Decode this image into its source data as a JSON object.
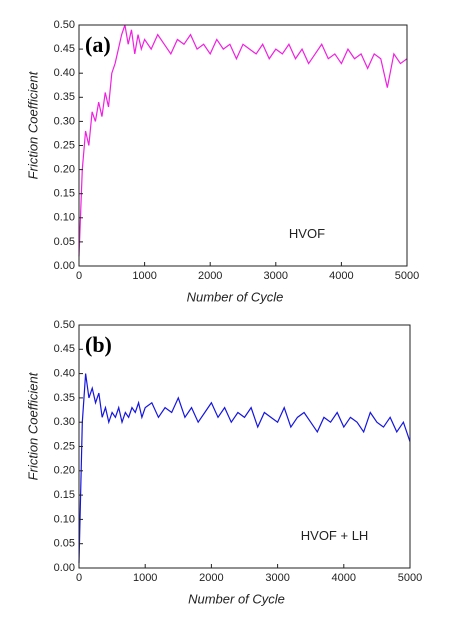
{
  "chart_data": [
    {
      "type": "line",
      "annotation": "(a)",
      "xlabel": "Number of Cycle",
      "ylabel": "Friction Coefficient",
      "xlim": [
        0,
        5000
      ],
      "xticks": [
        0,
        1000,
        2000,
        3000,
        4000,
        5000
      ],
      "ylim": [
        0,
        0.5
      ],
      "yticks": [
        {
          "value": 0,
          "label": "0.00"
        },
        {
          "value": 0.05,
          "label": "0.05"
        },
        {
          "value": 0.1,
          "label": "0.10"
        },
        {
          "value": 0.15,
          "label": "0.15"
        },
        {
          "value": 0.2,
          "label": "0.20"
        },
        {
          "value": 0.25,
          "label": "0.25"
        },
        {
          "value": 0.3,
          "label": "0.30"
        },
        {
          "value": 0.35,
          "label": "0.35"
        },
        {
          "value": 0.4,
          "label": "0.40"
        },
        {
          "value": 0.45,
          "label": "0.45"
        },
        {
          "value": 0.5,
          "label": "0.50"
        }
      ],
      "x": [
        0,
        50,
        100,
        150,
        200,
        250,
        300,
        350,
        400,
        450,
        500,
        550,
        600,
        650,
        700,
        750,
        800,
        850,
        900,
        950,
        1000,
        1100,
        1200,
        1300,
        1400,
        1500,
        1600,
        1700,
        1800,
        1900,
        2000,
        2100,
        2200,
        2300,
        2400,
        2500,
        2600,
        2700,
        2800,
        2900,
        3000,
        3100,
        3200,
        3300,
        3400,
        3500,
        3600,
        3700,
        3800,
        3900,
        4000,
        4100,
        4200,
        4300,
        4400,
        4500,
        4600,
        4700,
        4800,
        4900,
        5000
      ],
      "series": [
        {
          "name": "HVOF",
          "color": "#f020e0",
          "values": [
            0.02,
            0.2,
            0.28,
            0.25,
            0.32,
            0.3,
            0.34,
            0.31,
            0.36,
            0.33,
            0.4,
            0.42,
            0.45,
            0.48,
            0.5,
            0.46,
            0.49,
            0.44,
            0.48,
            0.45,
            0.47,
            0.45,
            0.48,
            0.46,
            0.44,
            0.47,
            0.46,
            0.48,
            0.45,
            0.46,
            0.44,
            0.47,
            0.45,
            0.46,
            0.43,
            0.46,
            0.45,
            0.44,
            0.46,
            0.43,
            0.45,
            0.44,
            0.46,
            0.43,
            0.45,
            0.42,
            0.44,
            0.46,
            0.43,
            0.44,
            0.42,
            0.45,
            0.43,
            0.44,
            0.41,
            0.44,
            0.43,
            0.37,
            0.44,
            0.42,
            0.43
          ]
        }
      ]
    },
    {
      "type": "line",
      "annotation": "(b)",
      "xlabel": "Number of Cycle",
      "ylabel": "Friction Coefficient",
      "xlim": [
        0,
        5000
      ],
      "xticks": [
        0,
        1000,
        2000,
        3000,
        4000,
        5000
      ],
      "ylim": [
        0,
        0.5
      ],
      "yticks": [
        {
          "value": 0,
          "label": "0.00"
        },
        {
          "value": 0.05,
          "label": "0.05"
        },
        {
          "value": 0.1,
          "label": "0.10"
        },
        {
          "value": 0.15,
          "label": "0.15"
        },
        {
          "value": 0.2,
          "label": "0.20"
        },
        {
          "value": 0.25,
          "label": "0.25"
        },
        {
          "value": 0.3,
          "label": "0.30"
        },
        {
          "value": 0.35,
          "label": "0.35"
        },
        {
          "value": 0.4,
          "label": "0.40"
        },
        {
          "value": 0.45,
          "label": "0.45"
        },
        {
          "value": 0.5,
          "label": "0.50"
        }
      ],
      "x": [
        0,
        50,
        100,
        150,
        200,
        250,
        300,
        350,
        400,
        450,
        500,
        550,
        600,
        650,
        700,
        750,
        800,
        850,
        900,
        950,
        1000,
        1100,
        1200,
        1300,
        1400,
        1500,
        1600,
        1700,
        1800,
        1900,
        2000,
        2100,
        2200,
        2300,
        2400,
        2500,
        2600,
        2700,
        2800,
        2900,
        3000,
        3100,
        3200,
        3300,
        3400,
        3500,
        3600,
        3700,
        3800,
        3900,
        4000,
        4100,
        4200,
        4300,
        4400,
        4500,
        4600,
        4700,
        4800,
        4900,
        5000
      ],
      "series": [
        {
          "name": "HVOF + LH",
          "color": "#1515e0",
          "values": [
            0.01,
            0.3,
            0.4,
            0.35,
            0.37,
            0.34,
            0.36,
            0.31,
            0.33,
            0.3,
            0.32,
            0.31,
            0.33,
            0.3,
            0.32,
            0.31,
            0.33,
            0.32,
            0.34,
            0.31,
            0.33,
            0.34,
            0.31,
            0.33,
            0.32,
            0.35,
            0.31,
            0.33,
            0.3,
            0.32,
            0.34,
            0.31,
            0.33,
            0.3,
            0.32,
            0.31,
            0.33,
            0.29,
            0.32,
            0.31,
            0.3,
            0.33,
            0.29,
            0.31,
            0.32,
            0.3,
            0.28,
            0.31,
            0.3,
            0.32,
            0.29,
            0.31,
            0.3,
            0.28,
            0.32,
            0.3,
            0.29,
            0.31,
            0.28,
            0.3,
            0.26
          ]
        }
      ]
    }
  ]
}
